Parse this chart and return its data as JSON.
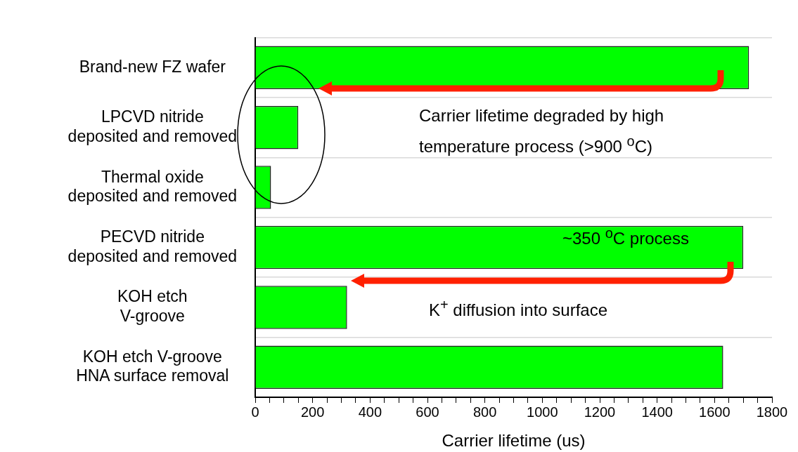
{
  "chart_data": {
    "type": "bar",
    "orientation": "horizontal",
    "categories": [
      "Brand-new FZ wafer",
      "LPCVD nitride\ndeposited and removed",
      "Thermal oxide\ndeposited and removed",
      "PECVD nitride\ndeposited and removed",
      "KOH etch\nV-groove",
      "KOH etch V-groove\nHNA surface removal"
    ],
    "values": [
      1720,
      150,
      55,
      1700,
      320,
      1630
    ],
    "color": "#00ff00",
    "xlabel": "Carrier lifetime (us)",
    "xlim": [
      0,
      1800
    ],
    "xticks": [
      0,
      {
        "value": 50,
        "label": null
      },
      {
        "value": 100,
        "label": null
      },
      {
        "value": 150,
        "label": null
      },
      200,
      {
        "value": 250,
        "label": null
      },
      {
        "value": 300,
        "label": null
      },
      {
        "value": 350,
        "label": null
      },
      400,
      {
        "value": 450,
        "label": null
      },
      {
        "value": 500,
        "label": null
      },
      {
        "value": 550,
        "label": null
      },
      600,
      {
        "value": 650,
        "label": null
      },
      {
        "value": 700,
        "label": null
      },
      {
        "value": 750,
        "label": null
      },
      800,
      {
        "value": 850,
        "label": null
      },
      {
        "value": 900,
        "label": null
      },
      {
        "value": 950,
        "label": null
      },
      1000,
      {
        "value": 1050,
        "label": null
      },
      {
        "value": 1100,
        "label": null
      },
      {
        "value": 1150,
        "label": null
      },
      1200,
      {
        "value": 1250,
        "label": null
      },
      {
        "value": 1300,
        "label": null
      },
      {
        "value": 1350,
        "label": null
      },
      1400,
      {
        "value": 1450,
        "label": null
      },
      {
        "value": 1500,
        "label": null
      },
      {
        "value": 1550,
        "label": null
      },
      1600,
      {
        "value": 1650,
        "label": null
      },
      {
        "value": 1700,
        "label": null
      },
      {
        "value": 1750,
        "label": null
      },
      1800
    ],
    "grid": "y",
    "annotations": [
      "Carrier lifetime degraded by high\ntemperature process (>900 $^{o}$C)",
      "~350 $^{o}$C process",
      "K$^{+}$ diffusion into surface"
    ]
  }
}
